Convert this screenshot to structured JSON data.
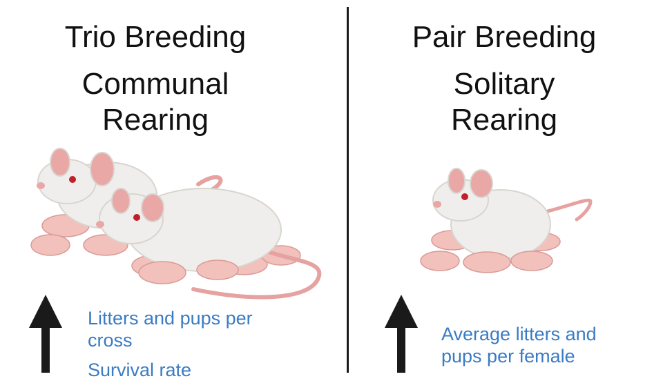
{
  "left": {
    "title": "Trio Breeding",
    "subtitle": "Communal\nRearing",
    "outcomes": [
      "Litters and pups per cross",
      "Survival rate"
    ]
  },
  "right": {
    "title": "Pair Breeding",
    "subtitle": "Solitary\nRearing",
    "outcomes": [
      "Average litters and pups per female"
    ]
  },
  "colors": {
    "heading": "#111111",
    "outcome_text": "#3a7bc4",
    "arrow": "#1a1a1a",
    "mouse_body": "#efeeec",
    "mouse_shadow": "#d8d5cf",
    "ear_inner": "#e9a7a5",
    "tail": "#e5a2a0",
    "pup": "#f2c1bc",
    "eye": "#c0202a"
  },
  "icons": [
    "adult-mouse-illustration",
    "pup-illustration",
    "up-arrow-icon"
  ]
}
